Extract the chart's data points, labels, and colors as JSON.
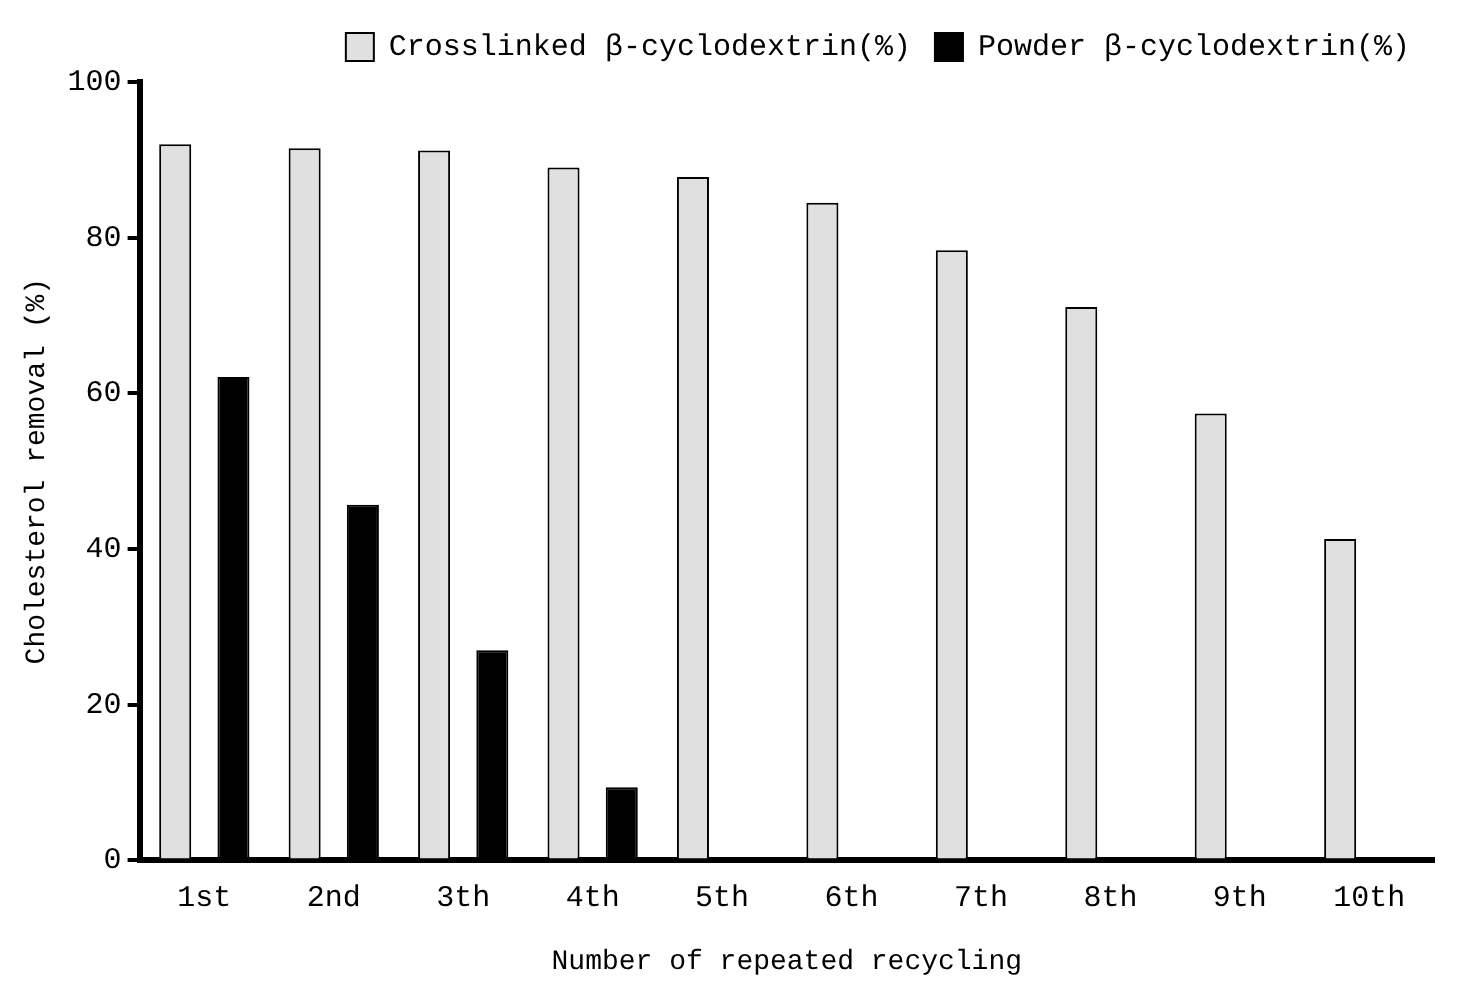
{
  "chart_data": {
    "type": "bar",
    "xlabel": "Number of repeated recycling",
    "ylabel": "Cholesterol removal (%)",
    "categories": [
      "1st",
      "2nd",
      "3th",
      "4th",
      "5th",
      "6th",
      "7th",
      "8th",
      "9th",
      "10th"
    ],
    "series": [
      {
        "name": "Crosslinked β-cyclodextrin(%)",
        "color": "#e0e0e0",
        "values": [
          92.0,
          91.5,
          91.2,
          89.0,
          87.8,
          84.5,
          78.4,
          71.1,
          57.4,
          41.3
        ]
      },
      {
        "name": "Powder β-cyclodextrin(%)",
        "color": "#000000",
        "values": [
          62.1,
          45.7,
          27.0,
          9.4,
          null,
          null,
          null,
          null,
          null,
          null
        ]
      }
    ],
    "ylim": [
      0,
      100
    ],
    "yticks": [
      0,
      20,
      40,
      60,
      80,
      100
    ],
    "grid": false,
    "legend": "top right"
  }
}
